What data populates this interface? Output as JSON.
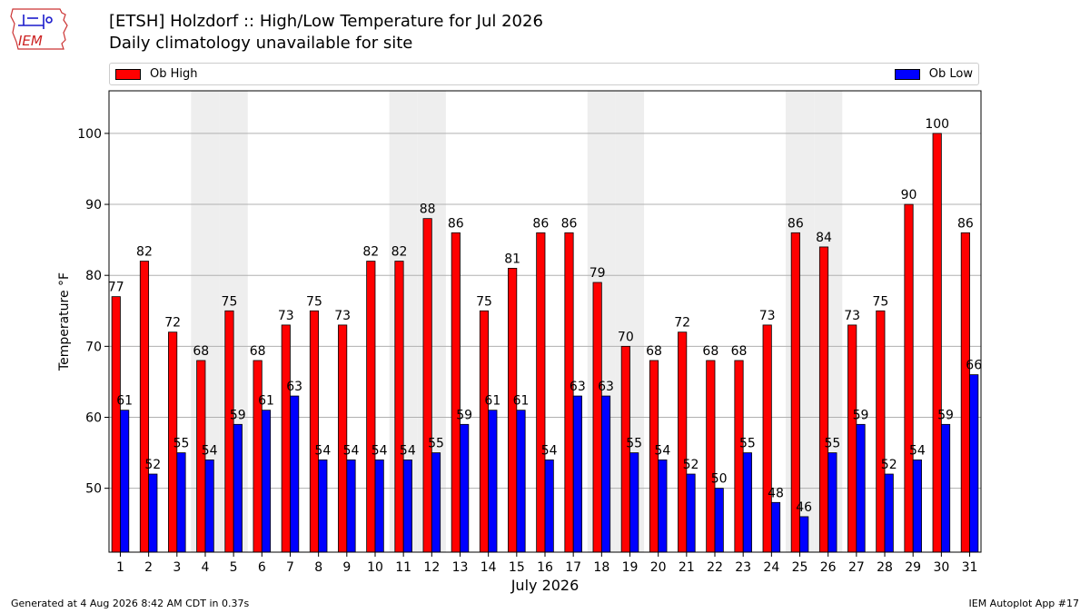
{
  "header": {
    "title": "[ETSH] Holzdorf :: High/Low Temperature for Jul 2026",
    "subtitle": "Daily climatology unavailable for site",
    "logo_text": "IEM"
  },
  "legend": {
    "high_label": "Ob High",
    "low_label": "Ob Low"
  },
  "footer": {
    "left": "Generated at 4 Aug 2026 8:42 AM CDT in 0.37s",
    "right": "IEM Autoplot App #17"
  },
  "colors": {
    "high": "#ff0000",
    "low": "#0000ff",
    "weekend_band": "#eeeeee",
    "grid": "#b0b0b0"
  },
  "chart_data": {
    "type": "bar",
    "title": "[ETSH] Holzdorf :: High/Low Temperature for Jul 2026",
    "subtitle": "Daily climatology unavailable for site",
    "xlabel": "July 2026",
    "ylabel": "Temperature °F",
    "ylim": [
      41,
      106
    ],
    "yticks": [
      50,
      60,
      70,
      80,
      90,
      100
    ],
    "grid": true,
    "legend_position": "top",
    "categories": [
      "1",
      "2",
      "3",
      "4",
      "5",
      "6",
      "7",
      "8",
      "9",
      "10",
      "11",
      "12",
      "13",
      "14",
      "15",
      "16",
      "17",
      "18",
      "19",
      "20",
      "21",
      "22",
      "23",
      "24",
      "25",
      "26",
      "27",
      "28",
      "29",
      "30",
      "31"
    ],
    "shaded_days": [
      4,
      5,
      11,
      12,
      18,
      19,
      25,
      26
    ],
    "series": [
      {
        "name": "Ob High",
        "color": "#ff0000",
        "values": [
          77,
          82,
          72,
          68,
          75,
          68,
          73,
          75,
          73,
          82,
          82,
          88,
          86,
          75,
          81,
          86,
          86,
          79,
          70,
          68,
          72,
          68,
          68,
          73,
          86,
          84,
          73,
          75,
          90,
          100,
          86
        ]
      },
      {
        "name": "Ob Low",
        "color": "#0000ff",
        "values": [
          61,
          52,
          55,
          54,
          59,
          61,
          63,
          54,
          54,
          54,
          54,
          55,
          59,
          61,
          61,
          54,
          63,
          63,
          55,
          54,
          52,
          50,
          55,
          48,
          46,
          55,
          59,
          52,
          54,
          59,
          66
        ]
      }
    ]
  }
}
